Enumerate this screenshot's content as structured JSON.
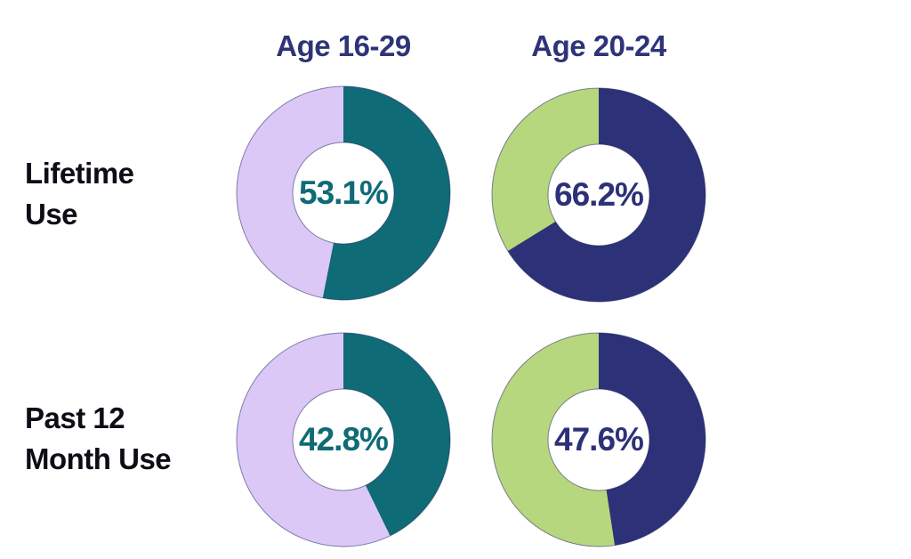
{
  "chart_data": {
    "type": "pie",
    "subtype": "donut-grid-2x2",
    "title": "",
    "columns": [
      "Age 16-29",
      "Age 20-24"
    ],
    "rows": [
      {
        "label": "Lifetime Use",
        "display": "Lifetime\nUse"
      },
      {
        "label": "Past 12 Month Use",
        "display": "Past 12\nMonth Use"
      }
    ],
    "start_angle_deg": 0,
    "direction": "clockwise",
    "donuts": [
      {
        "row": "Lifetime Use",
        "column": "Age 16-29",
        "value_pct": 53.1,
        "remainder_pct": 46.9,
        "label": "53.1%",
        "slice_color": "#0f6b76",
        "remainder_color": "#dcc8f6"
      },
      {
        "row": "Lifetime Use",
        "column": "Age 20-24",
        "value_pct": 66.2,
        "remainder_pct": 33.8,
        "label": "66.2%",
        "slice_color": "#2d3178",
        "remainder_color": "#b6d77e"
      },
      {
        "row": "Past 12 Month Use",
        "column": "Age 16-29",
        "value_pct": 42.8,
        "remainder_pct": 57.2,
        "label": "42.8%",
        "slice_color": "#0f6b76",
        "remainder_color": "#dcc8f6"
      },
      {
        "row": "Past 12 Month Use",
        "column": "Age 20-24",
        "value_pct": 47.6,
        "remainder_pct": 52.4,
        "label": "47.6%",
        "slice_color": "#2d3178",
        "remainder_color": "#b6d77e"
      }
    ],
    "colors": {
      "header_text": "#2d3478",
      "row_label_text": "#0d0d16",
      "teal": "#0f6b76",
      "lavender": "#dcc8f6",
      "navy": "#2d3178",
      "green": "#b6d77e",
      "ring_outline": "#232a66",
      "background": "#ffffff"
    },
    "legend_position": "none",
    "grid": false
  }
}
